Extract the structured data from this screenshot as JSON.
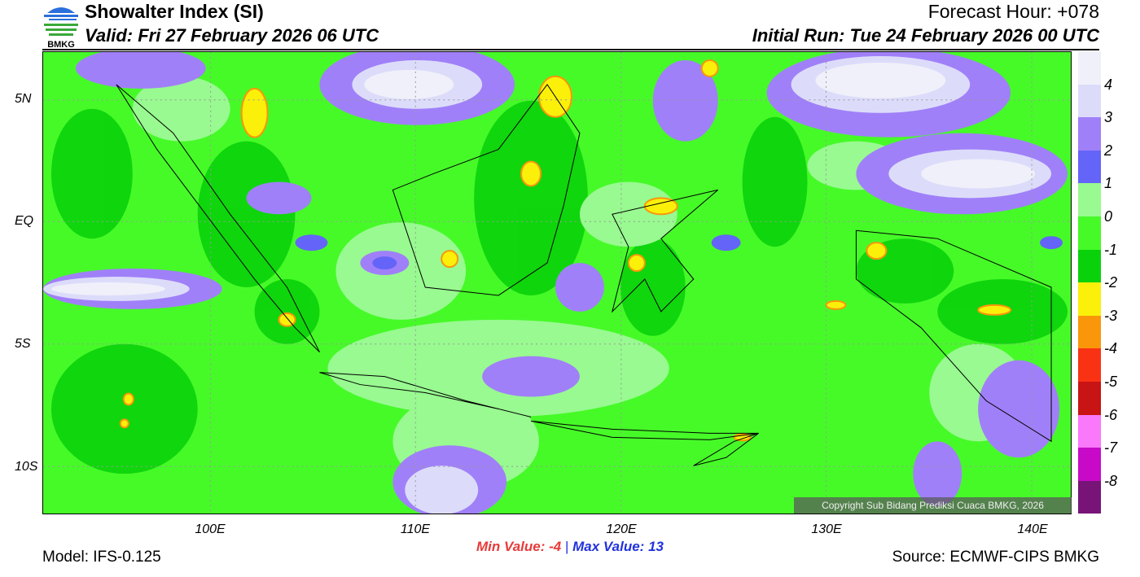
{
  "header": {
    "title": "Showalter Index (SI)",
    "valid": "Valid: Fri 27 February 2026 06 UTC",
    "forecast_hour": "Forecast Hour: +078",
    "initial_run": "Initial Run: Tue 24 February 2026 00 UTC",
    "logo_text": "BMKG"
  },
  "axes": {
    "lat_labels": [
      "5N",
      "EQ",
      "5S",
      "10S"
    ],
    "lon_labels": [
      "100E",
      "110E",
      "120E",
      "130E",
      "140E"
    ]
  },
  "colorbar": {
    "colors": [
      "#f0f0fa",
      "#dcdcfa",
      "#a080f8",
      "#6464f8",
      "#98fa90",
      "#46fa28",
      "#0ad20a",
      "#faf00a",
      "#fa960a",
      "#fa3214",
      "#c81414",
      "#fa78fa",
      "#c80ac8",
      "#781478"
    ],
    "labels": [
      "4",
      "3",
      "2",
      "1",
      "0",
      "-1",
      "-2",
      "-3",
      "-4",
      "-5",
      "-6",
      "-7",
      "-8"
    ]
  },
  "footer": {
    "min_label": "Min Value:",
    "min_value": "-4",
    "separator": "|",
    "max_label": "Max Value:",
    "max_value": "13",
    "model": "Model: IFS-0.125",
    "source": "Source: ECMWF-CIPS BMKG",
    "copyright": "Copyright Sub Bidang Prediksi Cuaca BMKG, 2026"
  }
}
